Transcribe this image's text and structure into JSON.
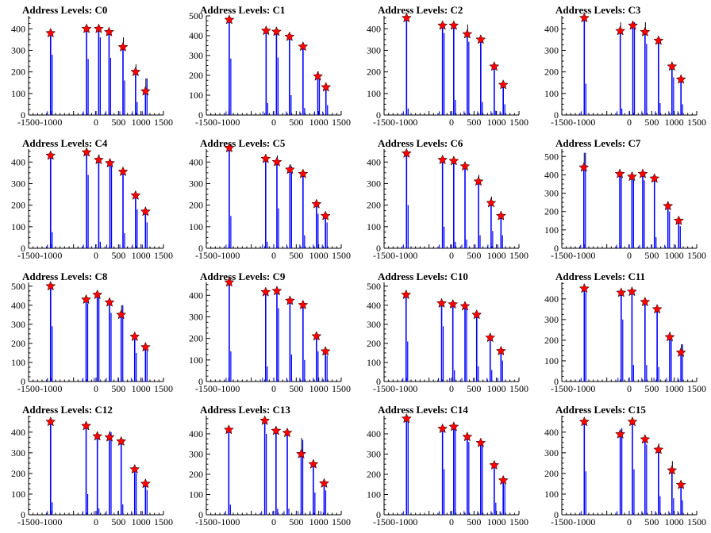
{
  "axis": {
    "xticks": [
      -1500,
      -1000,
      -500,
      0,
      500,
      1000,
      1500
    ],
    "xlim": [
      -1500,
      1500
    ],
    "xtick_labels": [
      "-1500",
      "-1000",
      "",
      "0",
      "500",
      "1000",
      "1500"
    ]
  },
  "style": {
    "bar_color": "#0000ff",
    "marker_color": "#ff0000",
    "axis_color": "#000000"
  },
  "chart_data": [
    {
      "type": "bar",
      "title": "Address Levels: C0",
      "ylim": [
        0,
        460
      ],
      "yticks": [
        100,
        200,
        300,
        400
      ],
      "x": [
        -1010,
        -210,
        60,
        290,
        600,
        880,
        1100
      ],
      "values": [
        380,
        400,
        400,
        385,
        315,
        200,
        110
      ],
      "secondary": [
        280,
        260,
        360,
        265,
        160,
        60,
        170
      ],
      "small": [
        8,
        8,
        8,
        8,
        8,
        8,
        8
      ],
      "noise_max": [
        380,
        405,
        410,
        390,
        360,
        235,
        170
      ]
    },
    {
      "type": "bar",
      "title": "Address Levels: C1",
      "ylim": [
        0,
        500
      ],
      "yticks": [
        100,
        200,
        300,
        400,
        500
      ],
      "x": [
        -990,
        -170,
        60,
        350,
        650,
        980,
        1160
      ],
      "values": [
        480,
        425,
        420,
        395,
        345,
        195,
        140
      ],
      "secondary": [
        285,
        60,
        290,
        100,
        35,
        180,
        50
      ],
      "small": [
        8,
        8,
        8,
        8,
        8,
        8,
        8
      ],
      "noise_max": [
        485,
        430,
        425,
        400,
        350,
        220,
        145
      ]
    },
    {
      "type": "bar",
      "title": "Address Levels: C2",
      "ylim": [
        0,
        460
      ],
      "yticks": [
        100,
        200,
        300,
        400
      ],
      "x": [
        -1000,
        -200,
        50,
        350,
        650,
        950,
        1150
      ],
      "values": [
        450,
        415,
        415,
        375,
        350,
        225,
        140
      ],
      "secondary": [
        30,
        380,
        70,
        340,
        60,
        20,
        50
      ],
      "small": [
        8,
        8,
        8,
        8,
        8,
        8,
        8
      ],
      "noise_max": [
        455,
        420,
        420,
        420,
        355,
        230,
        145
      ]
    },
    {
      "type": "bar",
      "title": "Address Levels: C3",
      "ylim": [
        0,
        460
      ],
      "yticks": [
        100,
        200,
        300,
        400
      ],
      "x": [
        -1000,
        -200,
        80,
        350,
        650,
        950,
        1150
      ],
      "values": [
        450,
        390,
        415,
        385,
        345,
        225,
        165
      ],
      "secondary": [
        145,
        30,
        430,
        330,
        55,
        175,
        50
      ],
      "small": [
        8,
        8,
        8,
        8,
        8,
        8,
        8
      ],
      "noise_max": [
        455,
        430,
        430,
        430,
        360,
        230,
        170
      ]
    },
    {
      "type": "bar",
      "title": "Address Levels: C4",
      "ylim": [
        0,
        460
      ],
      "yticks": [
        100,
        200,
        300,
        400
      ],
      "x": [
        -1010,
        -210,
        60,
        310,
        600,
        880,
        1100
      ],
      "values": [
        430,
        445,
        410,
        395,
        355,
        245,
        170
      ],
      "secondary": [
        75,
        340,
        30,
        380,
        70,
        180,
        120
      ],
      "small": [
        8,
        8,
        8,
        8,
        8,
        8,
        8
      ],
      "noise_max": [
        435,
        450,
        435,
        400,
        360,
        250,
        175
      ]
    },
    {
      "type": "bar",
      "title": "Address Levels: C5",
      "ylim": [
        0,
        460
      ],
      "yticks": [
        100,
        200,
        300,
        400
      ],
      "x": [
        -990,
        -180,
        70,
        360,
        650,
        950,
        1150
      ],
      "values": [
        465,
        415,
        400,
        365,
        345,
        205,
        150
      ],
      "secondary": [
        150,
        30,
        185,
        380,
        60,
        160,
        120
      ],
      "small": [
        8,
        8,
        8,
        8,
        8,
        8,
        8
      ],
      "noise_max": [
        470,
        420,
        430,
        390,
        350,
        210,
        155
      ]
    },
    {
      "type": "bar",
      "title": "Address Levels: C6",
      "ylim": [
        0,
        460
      ],
      "yticks": [
        100,
        200,
        300,
        400
      ],
      "x": [
        -1000,
        -200,
        50,
        300,
        600,
        880,
        1100
      ],
      "values": [
        440,
        410,
        405,
        380,
        310,
        210,
        150
      ],
      "secondary": [
        200,
        100,
        30,
        40,
        60,
        80,
        60
      ],
      "small": [
        8,
        8,
        8,
        8,
        8,
        8,
        8
      ],
      "noise_max": [
        445,
        415,
        410,
        385,
        340,
        240,
        155
      ]
    },
    {
      "type": "bar",
      "title": "Address Levels: C7",
      "ylim": [
        0,
        540
      ],
      "yticks": [
        100,
        200,
        300,
        400,
        500
      ],
      "x": [
        -1010,
        -210,
        60,
        300,
        560,
        860,
        1100
      ],
      "values": [
        440,
        405,
        390,
        405,
        380,
        230,
        150
      ],
      "secondary": [
        520,
        390,
        380,
        370,
        60,
        200,
        120
      ],
      "small": [
        8,
        8,
        8,
        8,
        8,
        8,
        8
      ],
      "noise_max": [
        520,
        420,
        415,
        420,
        385,
        235,
        160
      ]
    },
    {
      "type": "bar",
      "title": "Address Levels: C8",
      "ylim": [
        0,
        520
      ],
      "yticks": [
        100,
        200,
        300,
        400,
        500
      ],
      "x": [
        -1010,
        -220,
        30,
        300,
        560,
        860,
        1100
      ],
      "values": [
        500,
        430,
        455,
        415,
        350,
        235,
        180
      ],
      "secondary": [
        290,
        410,
        440,
        360,
        400,
        150,
        160
      ],
      "small": [
        8,
        8,
        8,
        8,
        8,
        8,
        8
      ],
      "noise_max": [
        505,
        435,
        460,
        420,
        400,
        240,
        185
      ]
    },
    {
      "type": "bar",
      "title": "Address Levels: C9",
      "ylim": [
        0,
        460
      ],
      "yticks": [
        100,
        200,
        300,
        400
      ],
      "x": [
        -990,
        -180,
        70,
        360,
        650,
        950,
        1150
      ],
      "values": [
        460,
        415,
        420,
        375,
        355,
        210,
        140
      ],
      "secondary": [
        140,
        70,
        340,
        125,
        100,
        140,
        120
      ],
      "small": [
        8,
        8,
        8,
        8,
        8,
        8,
        8
      ],
      "noise_max": [
        465,
        430,
        425,
        380,
        360,
        215,
        150
      ]
    },
    {
      "type": "bar",
      "title": "Address Levels: C10",
      "ylim": [
        0,
        520
      ],
      "yticks": [
        100,
        200,
        300,
        400,
        500
      ],
      "x": [
        -1010,
        -220,
        30,
        300,
        560,
        860,
        1100
      ],
      "values": [
        455,
        410,
        405,
        395,
        350,
        230,
        160
      ],
      "secondary": [
        210,
        290,
        60,
        380,
        80,
        60,
        110
      ],
      "small": [
        8,
        8,
        8,
        8,
        8,
        8,
        8
      ],
      "noise_max": [
        460,
        415,
        410,
        400,
        355,
        235,
        165
      ]
    },
    {
      "type": "bar",
      "title": "Address Levels: C11",
      "ylim": [
        0,
        480
      ],
      "yticks": [
        100,
        200,
        300,
        400
      ],
      "x": [
        -1000,
        -180,
        60,
        350,
        620,
        900,
        1150
      ],
      "values": [
        450,
        430,
        435,
        385,
        350,
        215,
        140
      ],
      "secondary": [
        430,
        300,
        80,
        80,
        70,
        200,
        180
      ],
      "small": [
        8,
        8,
        8,
        8,
        8,
        8,
        8
      ],
      "noise_max": [
        455,
        435,
        440,
        390,
        355,
        240,
        180
      ]
    },
    {
      "type": "bar",
      "title": "Address Levels: C12",
      "ylim": [
        0,
        480
      ],
      "yticks": [
        100,
        200,
        300,
        400
      ],
      "x": [
        -1010,
        -220,
        30,
        300,
        560,
        860,
        1100
      ],
      "values": [
        450,
        430,
        380,
        375,
        355,
        220,
        150
      ],
      "secondary": [
        60,
        100,
        30,
        400,
        50,
        200,
        120
      ],
      "small": [
        8,
        8,
        8,
        8,
        8,
        8,
        8
      ],
      "noise_max": [
        455,
        435,
        385,
        405,
        360,
        225,
        155
      ]
    },
    {
      "type": "bar",
      "title": "Address Levels: C13",
      "ylim": [
        0,
        490
      ],
      "yticks": [
        100,
        200,
        300,
        400
      ],
      "x": [
        -1000,
        -200,
        50,
        300,
        610,
        880,
        1120
      ],
      "values": [
        420,
        465,
        415,
        405,
        300,
        250,
        155
      ],
      "secondary": [
        50,
        400,
        30,
        30,
        370,
        110,
        120
      ],
      "small": [
        8,
        8,
        8,
        8,
        8,
        8,
        8
      ],
      "noise_max": [
        425,
        470,
        420,
        410,
        380,
        255,
        160
      ]
    },
    {
      "type": "bar",
      "title": "Address Levels: C14",
      "ylim": [
        0,
        490
      ],
      "yticks": [
        100,
        200,
        300,
        400
      ],
      "x": [
        -1000,
        -200,
        50,
        350,
        650,
        950,
        1150
      ],
      "values": [
        475,
        425,
        435,
        385,
        355,
        245,
        170
      ],
      "secondary": [
        470,
        225,
        420,
        360,
        340,
        60,
        150
      ],
      "small": [
        8,
        8,
        8,
        8,
        8,
        8,
        8
      ],
      "noise_max": [
        480,
        430,
        440,
        390,
        360,
        250,
        175
      ]
    },
    {
      "type": "bar",
      "title": "Address Levels: C15",
      "ylim": [
        0,
        480
      ],
      "yticks": [
        100,
        200,
        300,
        400
      ],
      "x": [
        -1000,
        -200,
        70,
        350,
        650,
        950,
        1150
      ],
      "values": [
        450,
        390,
        450,
        365,
        315,
        215,
        145
      ],
      "secondary": [
        210,
        420,
        220,
        340,
        90,
        80,
        70
      ],
      "small": [
        8,
        8,
        8,
        8,
        8,
        8,
        8
      ],
      "noise_max": [
        455,
        400,
        455,
        370,
        345,
        260,
        150
      ]
    }
  ]
}
